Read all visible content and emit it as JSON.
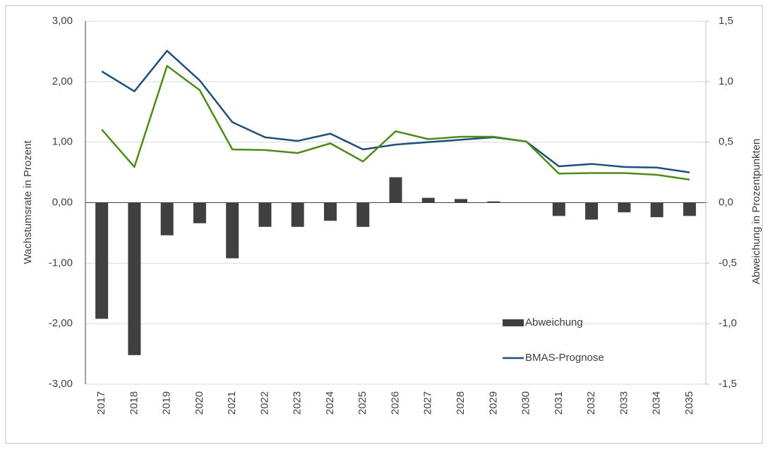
{
  "chart_data": {
    "type": "bar",
    "categories": [
      "2017",
      "2018",
      "2019",
      "2020",
      "2021",
      "2022",
      "2023",
      "2024",
      "2025",
      "2026",
      "2027",
      "2028",
      "2029",
      "2030",
      "2031",
      "2032",
      "2033",
      "2034",
      "2035"
    ],
    "y_label": "Wachstumsrate in Prozent",
    "y2_label": "Abweichung in Prozentpunkten",
    "ylim": [
      -3,
      3
    ],
    "yticks": [
      {
        "value": -3,
        "label": "-3,00"
      },
      {
        "value": -2,
        "label": "-2,00"
      },
      {
        "value": -1,
        "label": "-1,00"
      },
      {
        "value": 0,
        "label": "0,00"
      },
      {
        "value": 1,
        "label": "1,00"
      },
      {
        "value": 2,
        "label": "2,00"
      },
      {
        "value": 3,
        "label": "3,00"
      }
    ],
    "y2lim": [
      -1.5,
      1.5
    ],
    "y2ticks": [
      {
        "value": -1.5,
        "label": "-1,5"
      },
      {
        "value": -1,
        "label": "-1,0"
      },
      {
        "value": -0.5,
        "label": "-0,5"
      },
      {
        "value": 0,
        "label": "0,0"
      },
      {
        "value": 0.5,
        "label": "0,5"
      },
      {
        "value": 1,
        "label": "1,0"
      },
      {
        "value": 1.5,
        "label": "1,5"
      }
    ],
    "grid": true,
    "series": [
      {
        "name": "Abweichung",
        "type": "bar",
        "axis": "y2",
        "color": "#404040",
        "values": [
          -0.96,
          -1.26,
          -0.27,
          -0.17,
          -0.46,
          -0.2,
          -0.2,
          -0.15,
          -0.2,
          0.21,
          0.04,
          0.03,
          0.01,
          0,
          -0.11,
          -0.14,
          -0.08,
          -0.12,
          -0.11
        ]
      },
      {
        "name": "BMAS-Prognose",
        "type": "line",
        "color": "#1f4e79",
        "values": [
          2.17,
          1.84,
          2.51,
          2.02,
          1.33,
          1.08,
          1.02,
          1.14,
          0.88,
          0.96,
          1.0,
          1.04,
          1.08,
          1.01,
          0.6,
          0.64,
          0.59,
          0.58,
          0.5
        ]
      },
      {
        "type": "line",
        "color": "#4d8a17",
        "values": [
          1.21,
          0.59,
          2.26,
          1.86,
          0.88,
          0.87,
          0.82,
          0.98,
          0.68,
          1.18,
          1.05,
          1.09,
          1.09,
          1.01,
          0.48,
          0.49,
          0.49,
          0.46,
          0.38
        ]
      }
    ]
  }
}
